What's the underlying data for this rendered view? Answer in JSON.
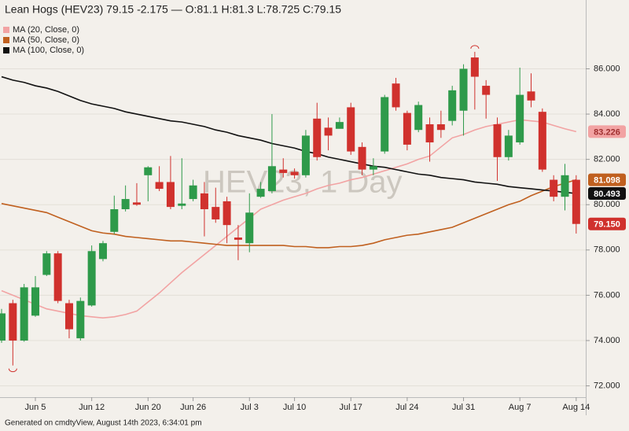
{
  "chart_data": {
    "type": "candlestick",
    "title": "Lean Hogs (HEV23) 79.15 -2.175 — O:81.1 H:81.3 L:78.725 C:79.15",
    "watermark": "HEV23, 1 Day",
    "footer": "Generated on cmdtyView, August 14th 2023, 6:34:01 pm",
    "categories": [
      null,
      null,
      null,
      "Jun 5",
      null,
      null,
      null,
      null,
      "Jun 12",
      null,
      null,
      null,
      null,
      "Jun 20",
      null,
      null,
      null,
      "Jun 26",
      null,
      null,
      null,
      null,
      "Jul 3",
      null,
      null,
      null,
      "Jul 10",
      null,
      null,
      null,
      null,
      "Jul 17",
      null,
      null,
      null,
      null,
      "Jul 24",
      null,
      null,
      null,
      null,
      "Jul 31",
      null,
      null,
      null,
      null,
      "Aug 7",
      null,
      null,
      null,
      null,
      "Aug 14"
    ],
    "open": [
      74.0,
      75.65,
      74.0,
      75.1,
      76.9,
      77.85,
      75.65,
      74.1,
      75.55,
      77.6,
      78.8,
      79.8,
      80.1,
      81.3,
      81.0,
      81.0,
      79.95,
      80.25,
      80.5,
      79.9,
      80.15,
      78.55,
      78.3,
      80.35,
      80.6,
      81.55,
      81.45,
      81.3,
      83.8,
      83.4,
      83.35,
      84.3,
      82.55,
      81.55,
      82.35,
      85.35,
      84.05,
      83.3,
      83.55,
      83.55,
      83.7,
      84.15,
      86.5,
      85.25,
      83.55,
      82.1,
      82.75,
      85.0,
      84.1,
      81.1,
      80.35,
      81.1
    ],
    "high": [
      75.4,
      75.8,
      76.5,
      76.85,
      77.95,
      77.95,
      75.8,
      75.9,
      78.2,
      78.4,
      80.4,
      80.85,
      80.95,
      81.7,
      81.7,
      82.15,
      82.05,
      81.1,
      81.0,
      80.75,
      80.35,
      79.1,
      80.5,
      81.0,
      84.0,
      82.05,
      81.6,
      83.3,
      84.5,
      83.85,
      83.85,
      84.5,
      82.75,
      82.05,
      84.85,
      85.6,
      84.15,
      84.55,
      83.85,
      84.15,
      85.25,
      86.2,
      86.75,
      85.5,
      83.85,
      83.3,
      86.05,
      85.8,
      84.25,
      81.3,
      81.8,
      81.3
    ],
    "low": [
      73.9,
      72.9,
      73.95,
      75.05,
      76.85,
      75.65,
      74.1,
      74.0,
      75.5,
      77.5,
      78.7,
      79.7,
      79.95,
      80.15,
      80.6,
      79.8,
      79.8,
      80.15,
      78.6,
      79.2,
      78.3,
      77.55,
      77.9,
      80.3,
      80.5,
      81.2,
      81.15,
      81.2,
      81.95,
      82.4,
      83.5,
      82.2,
      81.3,
      81.3,
      82.25,
      84.15,
      82.4,
      83.2,
      81.9,
      82.95,
      83.5,
      83.05,
      84.2,
      83.8,
      81.05,
      81.95,
      82.65,
      84.3,
      81.45,
      80.15,
      79.75,
      78.725
    ],
    "close": [
      75.2,
      74.0,
      76.35,
      76.35,
      77.85,
      75.75,
      74.5,
      75.75,
      77.95,
      78.3,
      79.8,
      80.25,
      80.0,
      81.65,
      80.7,
      79.9,
      80.05,
      80.85,
      79.8,
      79.35,
      79.1,
      78.45,
      79.65,
      80.7,
      81.7,
      81.4,
      81.3,
      83.05,
      82.1,
      83.05,
      83.65,
      82.35,
      81.55,
      81.7,
      84.75,
      84.3,
      82.65,
      84.4,
      82.75,
      83.3,
      85.05,
      86.0,
      85.65,
      84.85,
      82.1,
      83.05,
      84.85,
      84.6,
      81.55,
      80.35,
      81.3,
      79.15
    ],
    "close_label": "79.150",
    "up_color": "#2e9a4a",
    "down_color": "#d0312d",
    "series": [
      {
        "name": "MA (20, Close, 0)",
        "color": "#f2a3a3",
        "label": "83.226",
        "values": [
          76.2,
          76.0,
          75.8,
          75.6,
          75.4,
          75.3,
          75.2,
          75.1,
          75.05,
          75.0,
          75.05,
          75.15,
          75.3,
          75.7,
          76.1,
          76.55,
          77.0,
          77.4,
          77.8,
          78.2,
          78.6,
          79.0,
          79.4,
          79.8,
          80.0,
          80.2,
          80.35,
          80.5,
          80.7,
          80.85,
          80.95,
          81.1,
          81.2,
          81.35,
          81.5,
          81.65,
          81.8,
          82.0,
          82.15,
          82.55,
          82.95,
          83.1,
          83.3,
          83.45,
          83.55,
          83.65,
          83.75,
          83.7,
          83.65,
          83.5,
          83.35,
          83.226
        ]
      },
      {
        "name": "MA (50, Close, 0)",
        "color": "#c0601f",
        "label": "81.098",
        "values": [
          80.05,
          79.95,
          79.85,
          79.75,
          79.65,
          79.45,
          79.25,
          79.05,
          78.85,
          78.75,
          78.7,
          78.6,
          78.55,
          78.5,
          78.45,
          78.4,
          78.4,
          78.35,
          78.3,
          78.25,
          78.2,
          78.2,
          78.2,
          78.2,
          78.2,
          78.2,
          78.15,
          78.15,
          78.1,
          78.1,
          78.15,
          78.15,
          78.2,
          78.3,
          78.45,
          78.55,
          78.65,
          78.7,
          78.8,
          78.9,
          79.0,
          79.2,
          79.4,
          79.6,
          79.8,
          80.0,
          80.15,
          80.4,
          80.6,
          80.8,
          80.95,
          81.098
        ]
      },
      {
        "name": "MA (100, Close, 0)",
        "color": "#111111",
        "label": "80.493",
        "values": [
          85.65,
          85.5,
          85.4,
          85.25,
          85.15,
          85.0,
          84.8,
          84.6,
          84.45,
          84.35,
          84.25,
          84.1,
          84.0,
          83.9,
          83.8,
          83.7,
          83.65,
          83.55,
          83.45,
          83.3,
          83.2,
          83.05,
          82.95,
          82.85,
          82.7,
          82.6,
          82.5,
          82.35,
          82.25,
          82.1,
          82.0,
          81.9,
          81.8,
          81.7,
          81.65,
          81.55,
          81.45,
          81.35,
          81.3,
          81.2,
          81.15,
          81.1,
          81.0,
          80.95,
          80.9,
          80.8,
          80.75,
          80.7,
          80.65,
          80.6,
          80.55,
          80.493
        ]
      }
    ],
    "ylim": [
      71.5,
      88.1
    ],
    "yticks": [
      {
        "value": 72,
        "label": "72.000"
      },
      {
        "value": 74,
        "label": "74.000"
      },
      {
        "value": 76,
        "label": "76.000"
      },
      {
        "value": 78,
        "label": "78.000"
      },
      {
        "value": 80,
        "label": "80.000"
      },
      {
        "value": 82,
        "label": "82.000"
      },
      {
        "value": 84,
        "label": "84.000"
      },
      {
        "value": 86,
        "label": "86.000"
      }
    ],
    "grid": true
  }
}
